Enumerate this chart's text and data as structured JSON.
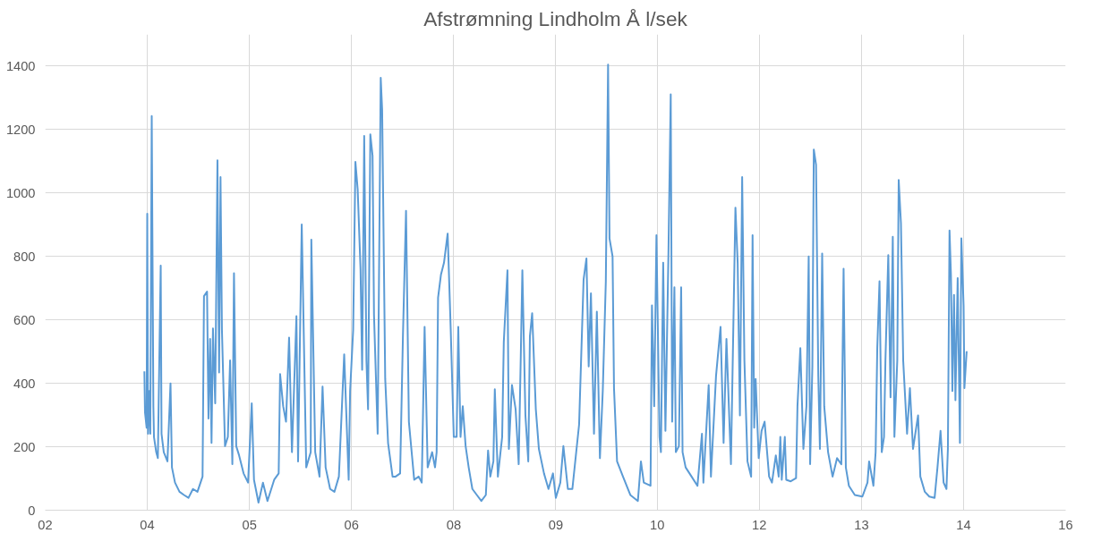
{
  "chart_data": {
    "type": "line",
    "title": "Afstrømning Lindholm Å l/sek",
    "xlim": [
      "2002-08-26",
      "2016-05-04"
    ],
    "xticks": [
      {
        "value": "2002-08-26",
        "label": "02"
      },
      {
        "value": "2004-01-08",
        "label": "04"
      },
      {
        "value": "2005-05-23",
        "label": "05"
      },
      {
        "value": "2006-10-05",
        "label": "06"
      },
      {
        "value": "2008-02-18",
        "label": "08"
      },
      {
        "value": "2009-07-02",
        "label": "09"
      },
      {
        "value": "2010-11-11",
        "label": "10"
      },
      {
        "value": "2012-03-25",
        "label": "12"
      },
      {
        "value": "2013-08-08",
        "label": "13"
      },
      {
        "value": "2014-12-21",
        "label": "14"
      },
      {
        "value": "2016-05-04",
        "label": "16"
      }
    ],
    "ylim": [
      0,
      1500
    ],
    "yticks": [
      0,
      200,
      400,
      600,
      800,
      1000,
      1200,
      1400
    ],
    "grid": true,
    "marker": "none",
    "line_style": "solid",
    "series": [
      {
        "color": "#5b9bd5",
        "x": [
          "2003-12-25",
          "2003-12-28",
          "2004-01-05",
          "2004-01-08",
          "2004-01-12",
          "2004-01-19",
          "2004-01-23",
          "2004-01-30",
          "2004-02-07",
          "2004-02-10",
          "2004-02-21",
          "2004-02-29",
          "2004-03-14",
          "2004-03-18",
          "2004-03-29",
          "2004-04-16",
          "2004-05-01",
          "2004-05-08",
          "2004-05-23",
          "2004-06-14",
          "2004-07-06",
          "2004-07-28",
          "2004-08-19",
          "2004-09-10",
          "2004-10-05",
          "2004-10-12",
          "2004-10-27",
          "2004-11-03",
          "2004-11-11",
          "2004-11-18",
          "2004-11-25",
          "2004-12-06",
          "2004-12-17",
          "2004-12-25",
          "2005-01-01",
          "2005-01-08",
          "2005-01-23",
          "2005-02-06",
          "2005-02-17",
          "2005-02-28",
          "2005-03-08",
          "2005-03-19",
          "2005-04-02",
          "2005-04-24",
          "2005-05-16",
          "2005-06-03",
          "2005-06-14",
          "2005-07-06",
          "2005-07-28",
          "2005-08-19",
          "2005-09-21",
          "2005-10-13",
          "2005-10-20",
          "2005-11-04",
          "2005-11-18",
          "2005-12-03",
          "2005-12-17",
          "2006-01-08",
          "2006-01-16",
          "2006-02-03",
          "2006-02-25",
          "2006-03-19",
          "2006-03-22",
          "2006-04-10",
          "2006-05-01",
          "2006-05-16",
          "2006-05-31",
          "2006-06-22",
          "2006-07-13",
          "2006-08-04",
          "2006-08-30",
          "2006-09-21",
          "2006-09-28",
          "2006-10-13",
          "2006-10-24",
          "2006-11-04",
          "2006-11-18",
          "2006-11-26",
          "2006-12-06",
          "2006-12-17",
          "2006-12-25",
          "2007-01-05",
          "2007-01-16",
          "2007-01-23",
          "2007-02-10",
          "2007-02-25",
          "2007-03-04",
          "2007-03-19",
          "2007-04-02",
          "2007-04-24",
          "2007-05-09",
          "2007-05-31",
          "2007-06-14",
          "2007-06-29",
          "2007-07-13",
          "2007-08-08",
          "2007-08-30",
          "2007-09-14",
          "2007-09-28",
          "2007-10-13",
          "2007-11-04",
          "2007-11-18",
          "2007-11-26",
          "2007-12-03",
          "2007-12-17",
          "2008-01-01",
          "2008-01-19",
          "2008-02-03",
          "2008-02-18",
          "2008-03-03",
          "2008-03-11",
          "2008-03-22",
          "2008-04-02",
          "2008-04-16",
          "2008-05-01",
          "2008-05-19",
          "2008-06-10",
          "2008-07-02",
          "2008-07-24",
          "2008-08-04",
          "2008-08-15",
          "2008-08-30",
          "2008-09-06",
          "2008-09-21",
          "2008-10-12",
          "2008-10-20",
          "2008-11-07",
          "2008-11-14",
          "2008-11-29",
          "2008-12-17",
          "2009-01-01",
          "2009-01-12",
          "2009-01-19",
          "2009-02-03",
          "2009-02-17",
          "2009-02-25",
          "2009-03-08",
          "2009-03-26",
          "2009-04-10",
          "2009-05-05",
          "2009-05-27",
          "2009-06-18",
          "2009-07-02",
          "2009-07-24",
          "2009-08-08",
          "2009-08-30",
          "2009-09-21",
          "2009-10-24",
          "2009-11-15",
          "2009-11-29",
          "2009-12-10",
          "2009-12-21",
          "2010-01-05",
          "2010-01-19",
          "2010-02-03",
          "2010-02-17",
          "2010-03-04",
          "2010-03-15",
          "2010-03-22",
          "2010-04-06",
          "2010-04-13",
          "2010-04-28",
          "2010-05-27",
          "2010-07-02",
          "2010-08-08",
          "2010-08-23",
          "2010-09-06",
          "2010-10-09",
          "2010-10-16",
          "2010-10-27",
          "2010-11-07",
          "2010-11-22",
          "2010-11-29",
          "2010-12-10",
          "2010-12-21",
          "2011-01-05",
          "2011-01-16",
          "2011-01-23",
          "2011-02-03",
          "2011-02-10",
          "2011-02-25",
          "2011-03-08",
          "2011-03-15",
          "2011-03-30",
          "2011-04-28",
          "2011-05-27",
          "2011-06-18",
          "2011-06-25",
          "2011-07-21",
          "2011-08-01",
          "2011-08-26",
          "2011-09-17",
          "2011-10-02",
          "2011-10-16",
          "2011-11-07",
          "2011-11-29",
          "2011-12-10",
          "2011-12-21",
          "2012-01-01",
          "2012-01-12",
          "2012-01-27",
          "2012-02-14",
          "2012-02-21",
          "2012-02-29",
          "2012-03-07",
          "2012-03-22",
          "2012-04-05",
          "2012-04-20",
          "2012-05-12",
          "2012-05-26",
          "2012-06-14",
          "2012-06-28",
          "2012-07-06",
          "2012-07-13",
          "2012-07-28",
          "2012-08-04",
          "2012-08-26",
          "2012-09-21",
          "2012-09-28",
          "2012-10-12",
          "2012-10-27",
          "2012-11-11",
          "2012-11-22",
          "2012-11-29",
          "2012-12-10",
          "2012-12-17",
          "2012-12-28",
          "2013-01-08",
          "2013-01-16",
          "2013-01-27",
          "2013-02-06",
          "2013-02-25",
          "2013-03-19",
          "2013-04-10",
          "2013-05-01",
          "2013-05-12",
          "2013-05-23",
          "2013-06-07",
          "2013-07-06",
          "2013-08-12",
          "2013-09-06",
          "2013-09-14",
          "2013-10-05",
          "2013-10-16",
          "2013-10-24",
          "2013-11-04",
          "2013-11-15",
          "2013-11-26",
          "2013-12-03",
          "2013-12-17",
          "2013-12-28",
          "2014-01-08",
          "2014-01-16",
          "2014-01-30",
          "2014-02-06",
          "2014-02-17",
          "2014-02-28",
          "2014-03-19",
          "2014-04-02",
          "2014-04-17",
          "2014-05-12",
          "2014-05-23",
          "2014-06-14",
          "2014-07-06",
          "2014-08-01",
          "2014-08-15",
          "2014-08-30",
          "2014-09-14",
          "2014-09-28",
          "2014-10-05",
          "2014-10-13",
          "2014-10-20",
          "2014-10-27",
          "2014-11-04",
          "2014-11-11",
          "2014-11-22",
          "2014-12-03",
          "2014-12-10",
          "2014-12-21",
          "2014-12-25",
          "2015-01-05"
        ],
        "values": [
          438,
          308,
          260,
          935,
          241,
          376,
          241,
          1243,
          328,
          231,
          183,
          164,
          771,
          241,
          183,
          154,
          400,
          135,
          87,
          58,
          48,
          39,
          67,
          58,
          106,
          675,
          689,
          289,
          540,
          212,
          573,
          337,
          1103,
          434,
          1050,
          568,
          202,
          231,
          472,
          145,
          747,
          202,
          173,
          116,
          87,
          337,
          96,
          24,
          87,
          29,
          96,
          116,
          429,
          328,
          279,
          544,
          183,
          612,
          154,
          901,
          135,
          183,
          853,
          183,
          106,
          390,
          135,
          67,
          58,
          106,
          491,
          96,
          376,
          568,
          1098,
          1012,
          761,
          443,
          1180,
          472,
          318,
          1185,
          1118,
          617,
          241,
          1363,
          1262,
          414,
          212,
          106,
          106,
          116,
          554,
          944,
          279,
          96,
          106,
          87,
          578,
          135,
          183,
          135,
          183,
          670,
          742,
          780,
          872,
          568,
          231,
          231,
          578,
          231,
          328,
          202,
          135,
          67,
          48,
          29,
          48,
          188,
          106,
          154,
          381,
          106,
          231,
          530,
          756,
          193,
          395,
          318,
          145,
          511,
          756,
          299,
          154,
          549,
          621,
          318,
          193,
          116,
          67,
          116,
          39,
          87,
          202,
          67,
          67,
          270,
          727,
          794,
          453,
          684,
          241,
          626,
          164,
          376,
          722,
          1405,
          857,
          800,
          385,
          154,
          106,
          48,
          29,
          154,
          87,
          77,
          646,
          328,
          867,
          231,
          183,
          780,
          250,
          819,
          1311,
          279,
          703,
          183,
          202,
          703,
          183,
          135,
          106,
          77,
          241,
          87,
          395,
          106,
          424,
          578,
          212,
          540,
          145,
          954,
          780,
          299,
          1050,
          472,
          154,
          106,
          867,
          260,
          414,
          164,
          250,
          279,
          106,
          87,
          173,
          106,
          231,
          96,
          231,
          96,
          91,
          101,
          328,
          511,
          193,
          328,
          800,
          145,
          453,
          1137,
          1089,
          424,
          193,
          809,
          328,
          183,
          106,
          164,
          145,
          761,
          135,
          77,
          48,
          43,
          87,
          154,
          77,
          183,
          511,
          722,
          183,
          231,
          472,
          804,
          356,
          862,
          231,
          472,
          1041,
          905,
          472,
          241,
          385,
          193,
          299,
          106,
          58,
          43,
          39,
          135,
          250,
          87,
          67,
          193,
          882,
          742,
          376,
          679,
          347,
          732,
          212,
          857,
          645,
          385,
          501
        ]
      }
    ]
  }
}
